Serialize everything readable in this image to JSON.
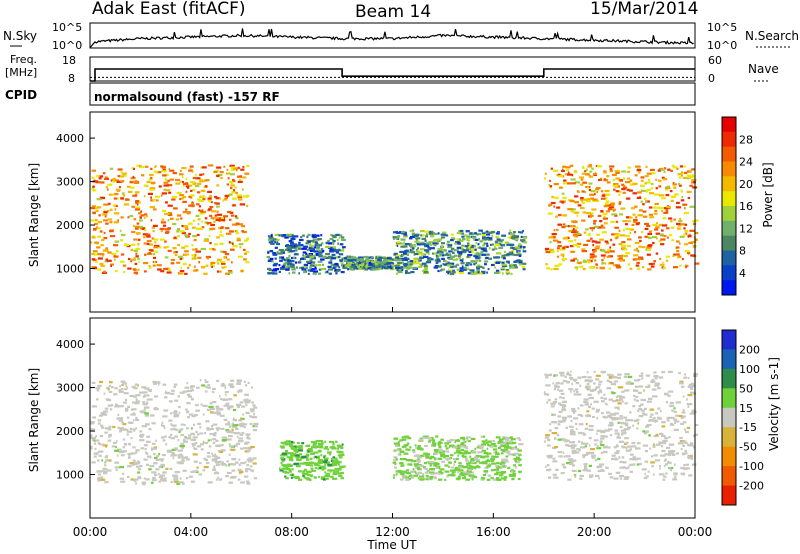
{
  "header": {
    "station": "Adak East (fitACF)",
    "beam": "Beam 14",
    "date": "15/Mar/2014"
  },
  "top_panels": {
    "nsky_label": "N.Sky",
    "nsky_ticks": [
      "10^5",
      "10^0"
    ],
    "nsearch_label": "N.Search",
    "nsearch_ticks": [
      "10^5",
      "10^0"
    ],
    "freq_label": "Freq.",
    "freq_unit": "[MHz]",
    "freq_ticks": [
      "18",
      "8"
    ],
    "nave_label": "Nave",
    "nave_ticks": [
      "60",
      "0"
    ],
    "cpid_label": "CPID",
    "cpid_text": "normalsound (fast) -157 RF"
  },
  "colors": {
    "power": [
      "#0018f0",
      "#0a40c8",
      "#1f62a2",
      "#4b8762",
      "#6fb16a",
      "#9fd23a",
      "#e8e800",
      "#f5b800",
      "#f78a00",
      "#f45b00",
      "#ee2a00",
      "#e60000"
    ],
    "velocity": [
      "#1e2dd0",
      "#1a63b4",
      "#2e8d4a",
      "#6fd23a",
      "#c8c8c0",
      "#d9b23a",
      "#f28c00",
      "#f05a00",
      "#e82000"
    ],
    "freq_line": "#000000"
  },
  "chart_data": [
    {
      "type": "line",
      "title": "N.Sky / N.Search",
      "xlabel": "",
      "ylabel": "",
      "series": [
        {
          "name": "N.Sky",
          "x": [
            0,
            0.2,
            2,
            4,
            6,
            8,
            10,
            12,
            14,
            16,
            18,
            20,
            22,
            24
          ],
          "y": [
            1,
            20,
            30,
            35,
            40,
            35,
            30,
            30,
            40,
            35,
            30,
            25,
            20,
            15
          ]
        }
      ]
    },
    {
      "type": "line",
      "title": "Freq. [MHz]",
      "xlabel": "",
      "ylabel": "Freq. [MHz]",
      "ylim": [
        8,
        18
      ],
      "series": [
        {
          "name": "Freq.",
          "x": [
            0,
            0.2,
            0.2,
            10,
            10,
            18,
            18,
            24
          ],
          "y": [
            8,
            8,
            13,
            13,
            10,
            10,
            13,
            13
          ]
        },
        {
          "name": "Nave",
          "x": [
            0,
            24
          ],
          "y": [
            9.5,
            9.5
          ]
        }
      ]
    },
    {
      "type": "heatmap",
      "title": "Power [dB]",
      "xlabel": "",
      "ylabel": "Slant Range [km]",
      "xlim": [
        0,
        24
      ],
      "ylim": [
        0,
        4600
      ],
      "yticks": [
        "1000",
        "2000",
        "3000",
        "4000"
      ],
      "colorbar": {
        "label": "Power [dB]",
        "ticks": [
          "4",
          "8",
          "12",
          "16",
          "20",
          "24",
          "28"
        ],
        "range": [
          0,
          32
        ]
      },
      "regions": [
        {
          "x": [
            0,
            6.2
          ],
          "y": [
            900,
            3400
          ],
          "value": 22
        },
        {
          "x": [
            7,
            10
          ],
          "y": [
            900,
            1800
          ],
          "value": 8
        },
        {
          "x": [
            10,
            12
          ],
          "y": [
            1000,
            1300
          ],
          "value": 9
        },
        {
          "x": [
            12,
            17.2
          ],
          "y": [
            900,
            1900
          ],
          "value": 10
        },
        {
          "x": [
            18,
            24
          ],
          "y": [
            1000,
            3400
          ],
          "value": 22
        }
      ]
    },
    {
      "type": "heatmap",
      "title": "Velocity [m s-1]",
      "xlabel": "Time UT",
      "ylabel": "Slant Range [km]",
      "xlim": [
        0,
        24
      ],
      "ylim": [
        0,
        4600
      ],
      "xticks": [
        "00:00",
        "04:00",
        "08:00",
        "12:00",
        "16:00",
        "20:00",
        "00:00"
      ],
      "yticks": [
        "1000",
        "2000",
        "3000",
        "4000"
      ],
      "colorbar": {
        "label": "Velocity [m s-1]",
        "ticks": [
          "200",
          "100",
          "50",
          "15",
          "-15",
          "-50",
          "-100",
          "-200"
        ],
        "range": [
          -250,
          250
        ]
      },
      "regions": [
        {
          "x": [
            0,
            6.5
          ],
          "y": [
            800,
            3200
          ],
          "value": 0
        },
        {
          "x": [
            7.5,
            10
          ],
          "y": [
            900,
            1800
          ],
          "value": 60
        },
        {
          "x": [
            12,
            17
          ],
          "y": [
            900,
            1900
          ],
          "value": 40
        },
        {
          "x": [
            18,
            24
          ],
          "y": [
            900,
            3400
          ],
          "value": 0
        }
      ]
    }
  ],
  "axis": {
    "xlabel": "Time UT"
  }
}
